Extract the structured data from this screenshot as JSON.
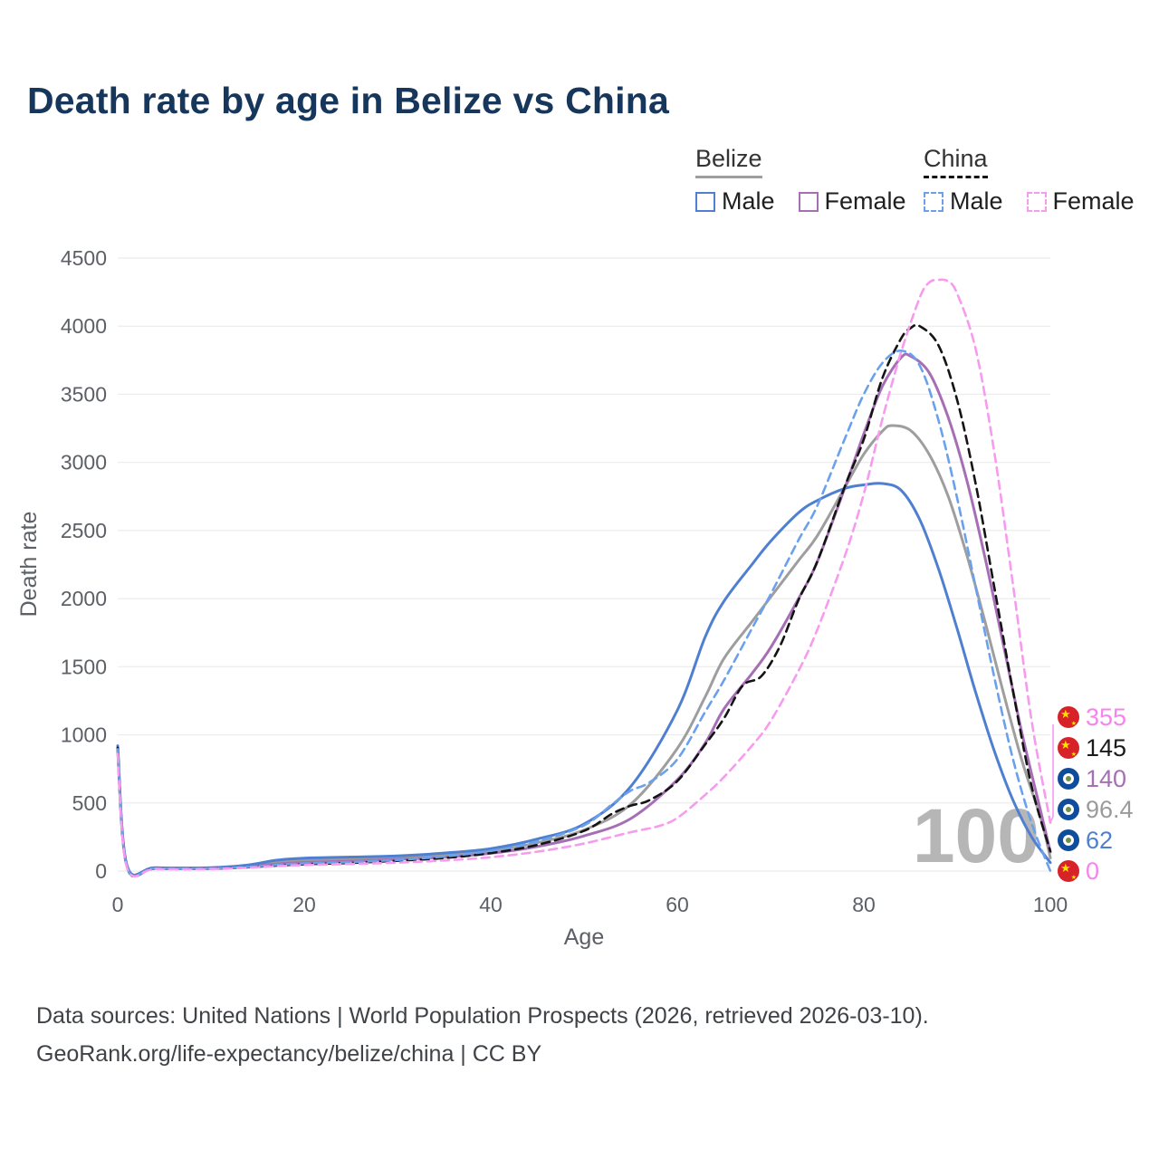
{
  "title": "Death rate by age in Belize vs China",
  "legend": {
    "groups": [
      {
        "label": "Belize",
        "style": "solid",
        "color": "#9e9e9e",
        "items": [
          {
            "label": "Male",
            "color": "#4f7fd0",
            "dash": false
          },
          {
            "label": "Female",
            "color": "#a66fb5",
            "dash": false
          }
        ]
      },
      {
        "label": "China",
        "style": "dashed",
        "color": "#141414",
        "items": [
          {
            "label": "Male",
            "color": "#6ba1ec",
            "dash": true
          },
          {
            "label": "Female",
            "color": "#f79bef",
            "dash": true
          }
        ]
      }
    ]
  },
  "chart_data": {
    "type": "line",
    "title": "Death rate by age in Belize vs China",
    "xlabel": "Age",
    "ylabel": "Death rate",
    "xlim": [
      0,
      100
    ],
    "ylim": [
      0,
      4500
    ],
    "x_ticks": [
      0,
      20,
      40,
      60,
      80,
      100
    ],
    "y_ticks": [
      0,
      500,
      1000,
      1500,
      2000,
      2500,
      3000,
      3500,
      4000,
      4500
    ],
    "grid": "horizontal",
    "legend_position": "top-right",
    "watermark": "100",
    "series": [
      {
        "name": "Belize",
        "country": "Belize",
        "color": "#9e9e9e",
        "dash": false,
        "end_value": 96.4,
        "points": [
          [
            0,
            900
          ],
          [
            1,
            37
          ],
          [
            4,
            23
          ],
          [
            10,
            23
          ],
          [
            14,
            40
          ],
          [
            17,
            65
          ],
          [
            20,
            80
          ],
          [
            25,
            90
          ],
          [
            30,
            100
          ],
          [
            35,
            118
          ],
          [
            40,
            148
          ],
          [
            45,
            208
          ],
          [
            50,
            302
          ],
          [
            55,
            490
          ],
          [
            60,
            900
          ],
          [
            63,
            1280
          ],
          [
            65,
            1560
          ],
          [
            68,
            1830
          ],
          [
            70,
            2010
          ],
          [
            73,
            2280
          ],
          [
            75,
            2460
          ],
          [
            78,
            2820
          ],
          [
            80,
            3060
          ],
          [
            82,
            3230
          ],
          [
            83,
            3270
          ],
          [
            85,
            3235
          ],
          [
            87,
            3060
          ],
          [
            89,
            2760
          ],
          [
            91,
            2330
          ],
          [
            93,
            1830
          ],
          [
            95,
            1300
          ],
          [
            97,
            800
          ],
          [
            99,
            380
          ],
          [
            100,
            96.4
          ]
        ]
      },
      {
        "name": "Belize Female",
        "country": "Belize",
        "color": "#a66fb5",
        "dash": false,
        "end_value": 140,
        "points": [
          [
            0,
            880
          ],
          [
            1,
            33
          ],
          [
            4,
            20
          ],
          [
            10,
            20
          ],
          [
            14,
            35
          ],
          [
            17,
            52
          ],
          [
            20,
            63
          ],
          [
            25,
            73
          ],
          [
            30,
            86
          ],
          [
            35,
            102
          ],
          [
            40,
            130
          ],
          [
            45,
            180
          ],
          [
            50,
            258
          ],
          [
            55,
            385
          ],
          [
            60,
            670
          ],
          [
            63,
            940
          ],
          [
            65,
            1190
          ],
          [
            68,
            1450
          ],
          [
            70,
            1640
          ],
          [
            73,
            2000
          ],
          [
            75,
            2270
          ],
          [
            78,
            2820
          ],
          [
            80,
            3210
          ],
          [
            82,
            3560
          ],
          [
            84,
            3770
          ],
          [
            85,
            3780
          ],
          [
            87,
            3660
          ],
          [
            89,
            3340
          ],
          [
            91,
            2880
          ],
          [
            93,
            2300
          ],
          [
            95,
            1650
          ],
          [
            97,
            1000
          ],
          [
            99,
            430
          ],
          [
            100,
            140
          ]
        ]
      },
      {
        "name": "Belize Male",
        "country": "Belize",
        "color": "#4f7fd0",
        "dash": false,
        "end_value": 62,
        "points": [
          [
            0,
            920
          ],
          [
            1,
            40
          ],
          [
            4,
            25
          ],
          [
            10,
            25
          ],
          [
            14,
            45
          ],
          [
            17,
            80
          ],
          [
            20,
            95
          ],
          [
            25,
            103
          ],
          [
            30,
            112
          ],
          [
            35,
            132
          ],
          [
            40,
            165
          ],
          [
            45,
            235
          ],
          [
            50,
            345
          ],
          [
            55,
            620
          ],
          [
            60,
            1180
          ],
          [
            63,
            1720
          ],
          [
            65,
            1980
          ],
          [
            68,
            2250
          ],
          [
            70,
            2420
          ],
          [
            73,
            2630
          ],
          [
            75,
            2720
          ],
          [
            78,
            2810
          ],
          [
            80,
            2835
          ],
          [
            82,
            2845
          ],
          [
            84,
            2795
          ],
          [
            86,
            2580
          ],
          [
            88,
            2220
          ],
          [
            90,
            1780
          ],
          [
            92,
            1310
          ],
          [
            94,
            880
          ],
          [
            96,
            520
          ],
          [
            98,
            250
          ],
          [
            100,
            62
          ]
        ]
      },
      {
        "name": "China",
        "country": "China",
        "color": "#141414",
        "dash": true,
        "end_value": 145,
        "points": [
          [
            0,
            905
          ],
          [
            1,
            28
          ],
          [
            4,
            17
          ],
          [
            10,
            17
          ],
          [
            14,
            28
          ],
          [
            17,
            40
          ],
          [
            20,
            50
          ],
          [
            25,
            60
          ],
          [
            30,
            76
          ],
          [
            35,
            96
          ],
          [
            40,
            132
          ],
          [
            45,
            192
          ],
          [
            50,
            295
          ],
          [
            53,
            420
          ],
          [
            55,
            480
          ],
          [
            57,
            520
          ],
          [
            60,
            660
          ],
          [
            63,
            930
          ],
          [
            65,
            1120
          ],
          [
            67,
            1360
          ],
          [
            69,
            1430
          ],
          [
            71,
            1650
          ],
          [
            73,
            1990
          ],
          [
            75,
            2270
          ],
          [
            78,
            2830
          ],
          [
            80,
            3170
          ],
          [
            82,
            3620
          ],
          [
            84,
            3910
          ],
          [
            85,
            3985
          ],
          [
            86,
            4000
          ],
          [
            88,
            3860
          ],
          [
            90,
            3460
          ],
          [
            92,
            2840
          ],
          [
            94,
            2080
          ],
          [
            96,
            1320
          ],
          [
            98,
            620
          ],
          [
            100,
            145
          ]
        ]
      },
      {
        "name": "China Male",
        "country": "China",
        "color": "#6ba1ec",
        "dash": true,
        "end_value": 0,
        "points": [
          [
            0,
            895
          ],
          [
            1,
            30
          ],
          [
            4,
            18
          ],
          [
            10,
            18
          ],
          [
            14,
            30
          ],
          [
            17,
            45
          ],
          [
            20,
            56
          ],
          [
            25,
            66
          ],
          [
            30,
            82
          ],
          [
            35,
            107
          ],
          [
            40,
            148
          ],
          [
            45,
            218
          ],
          [
            50,
            335
          ],
          [
            53,
            490
          ],
          [
            55,
            590
          ],
          [
            57,
            650
          ],
          [
            60,
            820
          ],
          [
            63,
            1170
          ],
          [
            65,
            1400
          ],
          [
            68,
            1780
          ],
          [
            70,
            2030
          ],
          [
            73,
            2430
          ],
          [
            75,
            2680
          ],
          [
            78,
            3180
          ],
          [
            80,
            3500
          ],
          [
            82,
            3730
          ],
          [
            84,
            3820
          ],
          [
            86,
            3710
          ],
          [
            88,
            3310
          ],
          [
            90,
            2740
          ],
          [
            92,
            2080
          ],
          [
            94,
            1420
          ],
          [
            96,
            820
          ],
          [
            98,
            350
          ],
          [
            100,
            0
          ]
        ]
      },
      {
        "name": "China Female",
        "country": "China",
        "color": "#f79bef",
        "dash": true,
        "end_value": 355,
        "points": [
          [
            0,
            860
          ],
          [
            1,
            26
          ],
          [
            4,
            15
          ],
          [
            10,
            15
          ],
          [
            14,
            25
          ],
          [
            17,
            36
          ],
          [
            20,
            44
          ],
          [
            25,
            52
          ],
          [
            30,
            62
          ],
          [
            35,
            78
          ],
          [
            40,
            102
          ],
          [
            45,
            142
          ],
          [
            50,
            202
          ],
          [
            55,
            285
          ],
          [
            58,
            330
          ],
          [
            60,
            390
          ],
          [
            63,
            560
          ],
          [
            65,
            690
          ],
          [
            68,
            920
          ],
          [
            70,
            1100
          ],
          [
            73,
            1470
          ],
          [
            75,
            1770
          ],
          [
            78,
            2320
          ],
          [
            80,
            2770
          ],
          [
            82,
            3320
          ],
          [
            84,
            3810
          ],
          [
            86,
            4210
          ],
          [
            87,
            4320
          ],
          [
            88,
            4340
          ],
          [
            89,
            4330
          ],
          [
            90,
            4240
          ],
          [
            92,
            3830
          ],
          [
            94,
            3070
          ],
          [
            96,
            2100
          ],
          [
            98,
            1100
          ],
          [
            100,
            355
          ]
        ]
      }
    ],
    "end_labels": [
      {
        "value": "355",
        "country": "China",
        "flag": "cn",
        "color": "#f584ec"
      },
      {
        "value": "145",
        "country": "China",
        "flag": "cn",
        "color": "#1a1a1a"
      },
      {
        "value": "140",
        "country": "Belize",
        "flag": "bz",
        "color": "#a66fb5"
      },
      {
        "value": "96.4",
        "country": "Belize",
        "flag": "bz",
        "color": "#9b9b9b"
      },
      {
        "value": "62",
        "country": "Belize",
        "flag": "bz",
        "color": "#4f7fd0"
      },
      {
        "value": "0",
        "country": "China",
        "flag": "cn",
        "color": "#f584ec"
      }
    ]
  },
  "footer": {
    "line1": "Data sources: United Nations | World Population Prospects (2026, retrieved 2026-03-10).",
    "line2": "GeoRank.org/life-expectancy/belize/china | CC BY"
  }
}
